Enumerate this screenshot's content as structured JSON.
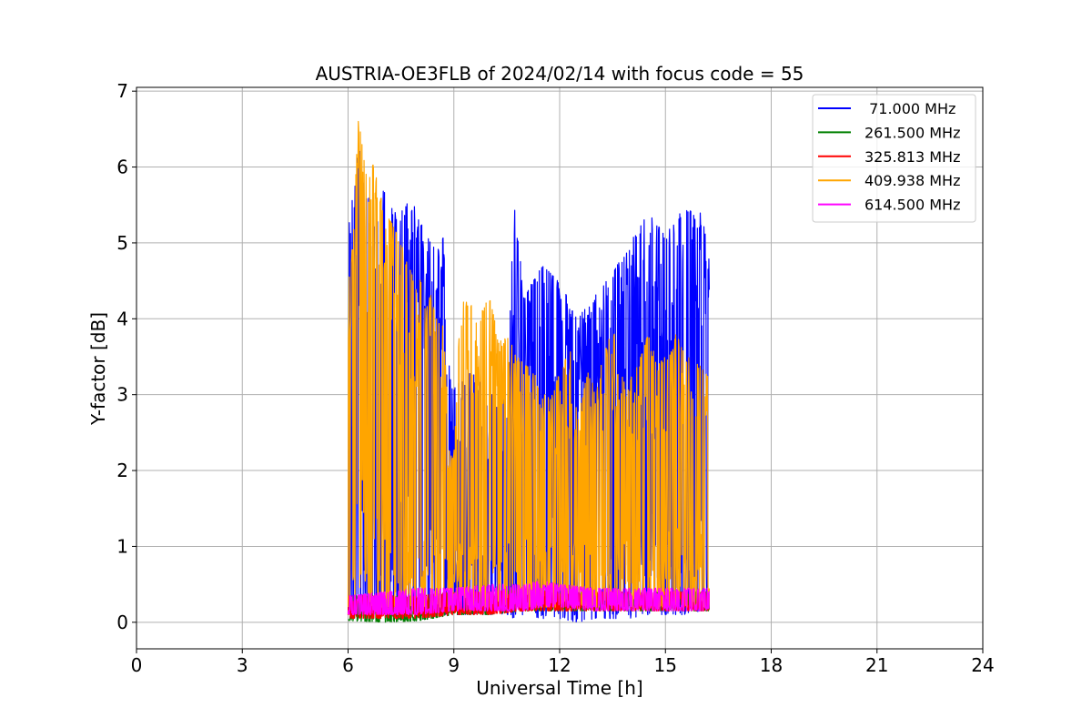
{
  "chart_data": {
    "type": "line",
    "title": "AUSTRIA-OE3FLB of 2024/02/14 with focus code = 55",
    "xlabel": "Universal Time [h]",
    "ylabel": "Y-factor [dB]",
    "xlim": [
      0,
      24
    ],
    "ylim": [
      -0.35,
      7.05
    ],
    "x_ticks": [
      0,
      3,
      6,
      9,
      12,
      15,
      18,
      21,
      24
    ],
    "y_ticks": [
      0,
      1,
      2,
      3,
      4,
      5,
      6,
      7
    ],
    "grid": true,
    "legend_position": "top-right",
    "series": [
      {
        "name": " 71.000 MHz",
        "color": "#0000ff",
        "envelope_x": [
          6.0,
          6.1,
          6.3,
          6.5,
          6.8,
          7.0,
          7.3,
          7.5,
          7.8,
          8.0,
          8.3,
          8.5,
          8.7,
          8.9,
          9.0,
          9.5,
          10.0,
          10.5,
          10.7,
          11.0,
          11.5,
          12.0,
          12.5,
          13.0,
          13.5,
          14.0,
          14.5,
          15.0,
          15.5,
          16.0,
          16.25
        ],
        "upper": [
          5.2,
          5.5,
          6.3,
          5.7,
          5.3,
          5.7,
          5.4,
          5.4,
          5.6,
          5.3,
          5.1,
          4.9,
          5.1,
          3.3,
          3.1,
          3.3,
          3.0,
          3.0,
          5.55,
          4.3,
          4.7,
          4.5,
          4.0,
          4.3,
          4.6,
          5.0,
          5.4,
          5.1,
          5.45,
          5.4,
          4.9
        ],
        "lower": [
          0.1,
          0.1,
          0.1,
          0.1,
          0.1,
          0.1,
          0.1,
          0.1,
          0.1,
          0.1,
          0.1,
          0.1,
          0.1,
          0.1,
          0.1,
          0.1,
          0.1,
          0.1,
          0.05,
          0.1,
          0.05,
          0.05,
          0.0,
          0.05,
          0.05,
          0.05,
          0.1,
          0.1,
          0.1,
          0.15,
          0.15
        ]
      },
      {
        "name": "261.500 MHz",
        "color": "#008000",
        "envelope_x": [
          6.0,
          7.0,
          8.0,
          9.0,
          10.0,
          11.0,
          12.0,
          13.0,
          14.0,
          15.0,
          16.0,
          16.25
        ],
        "upper": [
          0.35,
          0.35,
          0.35,
          0.4,
          0.4,
          0.45,
          0.4,
          0.4,
          0.4,
          0.4,
          0.4,
          0.4
        ],
        "lower": [
          0.02,
          0.0,
          0.02,
          0.1,
          0.1,
          0.15,
          0.15,
          0.15,
          0.15,
          0.15,
          0.15,
          0.15
        ]
      },
      {
        "name": "325.813 MHz",
        "color": "#ff0000",
        "envelope_x": [
          6.0,
          7.0,
          8.0,
          9.0,
          10.0,
          11.0,
          12.0,
          13.0,
          14.0,
          15.0,
          16.0,
          16.25
        ],
        "upper": [
          0.35,
          0.35,
          0.35,
          0.4,
          0.4,
          0.45,
          0.4,
          0.4,
          0.4,
          0.4,
          0.4,
          0.4
        ],
        "lower": [
          0.05,
          0.05,
          0.05,
          0.1,
          0.1,
          0.15,
          0.15,
          0.15,
          0.15,
          0.15,
          0.15,
          0.15
        ]
      },
      {
        "name": "409.938 MHz",
        "color": "#ffa500",
        "envelope_x": [
          6.0,
          6.1,
          6.3,
          6.5,
          6.7,
          7.0,
          7.3,
          7.5,
          7.8,
          8.0,
          8.3,
          8.5,
          8.7,
          8.9,
          9.0,
          9.2,
          9.4,
          9.6,
          9.8,
          10.0,
          10.3,
          10.5,
          10.8,
          11.0,
          11.3,
          11.5,
          11.8,
          12.0,
          12.3,
          12.5,
          12.8,
          13.0,
          13.3,
          13.5,
          13.8,
          14.0,
          14.3,
          14.5,
          14.8,
          15.0,
          15.3,
          15.5,
          15.8,
          16.0,
          16.25
        ],
        "upper": [
          4.5,
          4.8,
          6.7,
          5.9,
          6.05,
          5.5,
          5.2,
          5.0,
          4.6,
          4.6,
          4.4,
          4.0,
          3.9,
          2.3,
          2.2,
          4.3,
          4.2,
          4.3,
          4.1,
          4.3,
          3.7,
          3.8,
          3.5,
          3.4,
          3.3,
          3.0,
          3.0,
          3.3,
          3.6,
          2.7,
          3.3,
          3.1,
          3.6,
          3.9,
          3.3,
          3.2,
          3.5,
          3.8,
          3.4,
          3.5,
          3.8,
          3.6,
          3.4,
          3.4,
          3.2
        ],
        "lower": [
          0.2,
          0.2,
          0.2,
          0.2,
          0.2,
          0.2,
          0.2,
          0.2,
          0.2,
          0.2,
          0.2,
          0.2,
          0.2,
          0.2,
          0.2,
          0.2,
          0.2,
          0.2,
          0.2,
          0.2,
          0.2,
          0.2,
          0.2,
          0.2,
          0.2,
          0.2,
          0.2,
          0.2,
          0.2,
          0.2,
          0.2,
          0.2,
          0.2,
          0.2,
          0.2,
          0.2,
          0.2,
          0.2,
          0.2,
          0.2,
          0.2,
          0.2,
          0.2,
          0.2,
          0.2
        ]
      },
      {
        "name": "614.500 MHz",
        "color": "#ff00ff",
        "envelope_x": [
          6.0,
          7.0,
          8.0,
          9.0,
          10.0,
          11.0,
          11.5,
          12.0,
          13.0,
          14.0,
          15.0,
          16.0,
          16.25
        ],
        "upper": [
          0.35,
          0.4,
          0.45,
          0.45,
          0.5,
          0.5,
          0.55,
          0.5,
          0.45,
          0.45,
          0.45,
          0.45,
          0.45
        ],
        "lower": [
          0.1,
          0.1,
          0.1,
          0.15,
          0.15,
          0.15,
          0.2,
          0.2,
          0.15,
          0.15,
          0.15,
          0.15,
          0.15
        ]
      }
    ]
  }
}
